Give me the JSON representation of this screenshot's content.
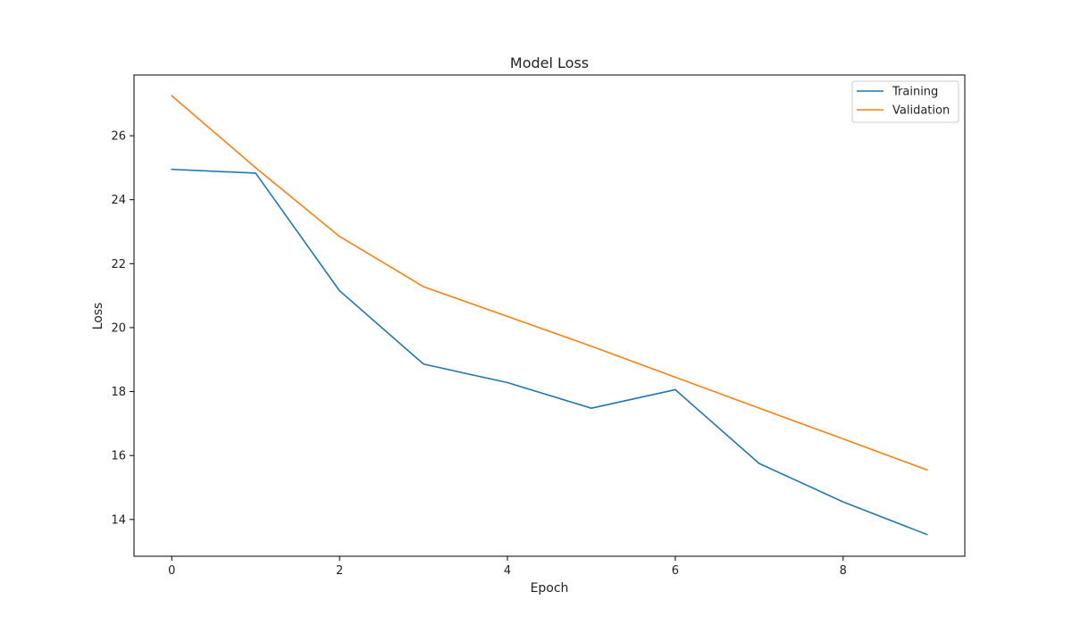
{
  "chart_data": {
    "type": "line",
    "title": "Model Loss",
    "xlabel": "Epoch",
    "ylabel": "Loss",
    "x": [
      0,
      1,
      2,
      3,
      4,
      5,
      6,
      7,
      8,
      9
    ],
    "xlim": [
      -0.45,
      9.45
    ],
    "ylim": [
      12.85,
      27.9
    ],
    "xticks": [
      0,
      2,
      4,
      6,
      8
    ],
    "yticks": [
      14,
      16,
      18,
      20,
      22,
      24,
      26
    ],
    "grid": false,
    "legend_position": "top-right",
    "series": [
      {
        "name": "Training",
        "color": "#1f77b4",
        "values": [
          24.95,
          24.83,
          21.15,
          18.86,
          18.28,
          17.48,
          18.06,
          15.75,
          14.55,
          13.53
        ]
      },
      {
        "name": "Validation",
        "color": "#ff7f0e",
        "values": [
          27.25,
          25.0,
          22.85,
          21.28,
          20.35,
          19.42,
          18.45,
          17.48,
          16.52,
          15.55
        ]
      }
    ]
  }
}
